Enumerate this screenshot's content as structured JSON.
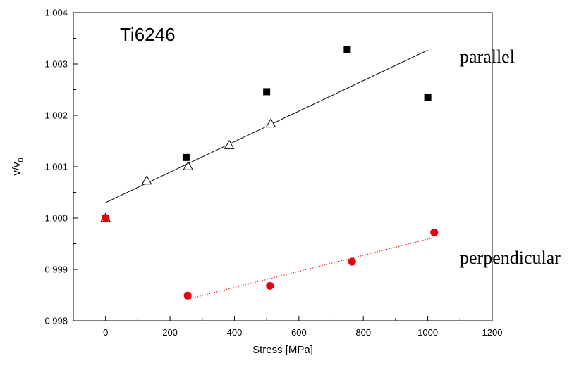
{
  "chart_data": {
    "type": "scatter",
    "title": "Ti6246",
    "xlabel": "Stress [MPa]",
    "ylabel_main": "v/v",
    "ylabel_sub": "0",
    "xlim": [
      -100,
      1200
    ],
    "ylim": [
      0.998,
      1.004
    ],
    "x_ticks": [
      0,
      200,
      400,
      600,
      800,
      1000,
      1200
    ],
    "x_tick_labels": [
      "0",
      "200",
      "400",
      "600",
      "800",
      "1000",
      "1200"
    ],
    "y_ticks": [
      0.998,
      0.999,
      1.0,
      1.001,
      1.002,
      1.003,
      1.004
    ],
    "y_tick_labels": [
      "0,998",
      "0,999",
      "1,000",
      "1,001",
      "1,002",
      "1,003",
      "1,004"
    ],
    "grid": false,
    "series": [
      {
        "marker": "square",
        "color": "#000000",
        "points": [
          [
            0,
            1.0
          ],
          [
            250,
            1.00118
          ],
          [
            500,
            1.00246
          ],
          [
            750,
            1.00328
          ],
          [
            1000,
            1.00235
          ]
        ]
      },
      {
        "marker": "open-triangle",
        "color": "#000000",
        "points": [
          [
            0,
            1.0
          ],
          [
            128,
            1.00073
          ],
          [
            256,
            1.00101
          ],
          [
            384,
            1.00142
          ],
          [
            513,
            1.00184
          ]
        ]
      },
      {
        "marker": "circle",
        "color": "#e8000a",
        "points": [
          [
            0,
            1.0
          ],
          [
            255,
            0.99849
          ],
          [
            510,
            0.99868
          ],
          [
            765,
            0.99915
          ],
          [
            1020,
            0.99972
          ]
        ]
      }
    ],
    "fit_lines": [
      {
        "color": "#000000",
        "style": "solid",
        "from": [
          0,
          1.0003
        ],
        "to": [
          1000,
          1.00327
        ]
      },
      {
        "color": "#e8000a",
        "style": "dotted",
        "from": [
          255,
          0.99842
        ],
        "to": [
          1020,
          0.99962
        ]
      }
    ],
    "annotations": [
      {
        "text": "parallel"
      },
      {
        "text": "perpendicular"
      }
    ]
  }
}
